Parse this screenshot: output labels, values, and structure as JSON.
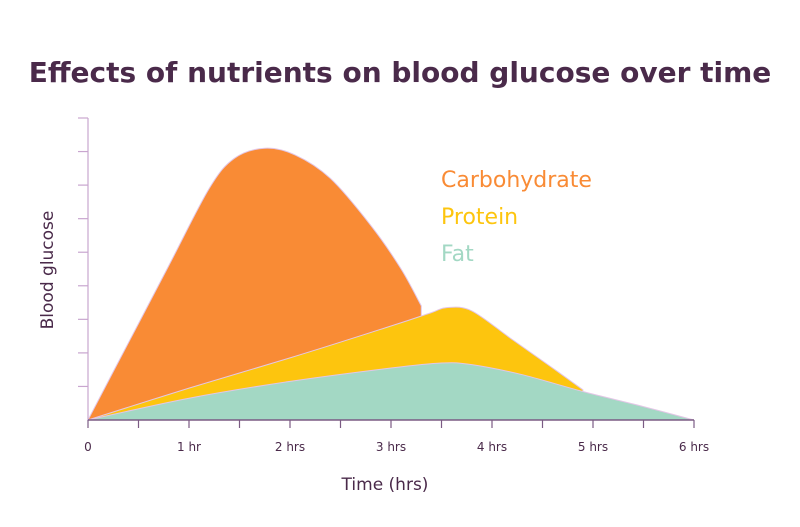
{
  "chart_data": {
    "type": "area",
    "title": "Effects of nutrients on blood glucose over time",
    "xlabel": "Time (hrs)",
    "ylabel": "Blood glucose",
    "xlim": [
      0,
      6
    ],
    "ylim": [
      0,
      9
    ],
    "x_tick_labels": [
      "0",
      "1 hr",
      "2 hrs",
      "3 hrs",
      "4 hrs",
      "5 hrs",
      "6 hrs"
    ],
    "y_tick_count": 9,
    "grid": false,
    "legend": "top-right",
    "series": [
      {
        "name": "Carbohydrate",
        "color": "#f98b35",
        "points": [
          [
            0,
            0
          ],
          [
            0.4,
            2.3
          ],
          [
            0.8,
            4.6
          ],
          [
            1.2,
            6.9
          ],
          [
            1.45,
            7.8
          ],
          [
            1.75,
            8.1
          ],
          [
            2.05,
            7.9
          ],
          [
            2.4,
            7.2
          ],
          [
            2.8,
            5.8
          ],
          [
            3.1,
            4.5
          ],
          [
            3.3,
            3.4
          ]
        ]
      },
      {
        "name": "Protein",
        "color": "#fdc50e",
        "points": [
          [
            0,
            0
          ],
          [
            1,
            0.95
          ],
          [
            2,
            1.85
          ],
          [
            3,
            2.8
          ],
          [
            3.4,
            3.2
          ],
          [
            3.55,
            3.35
          ],
          [
            3.8,
            3.25
          ],
          [
            4.2,
            2.4
          ],
          [
            4.6,
            1.55
          ],
          [
            4.9,
            0.9
          ]
        ]
      },
      {
        "name": "Fat",
        "color": "#a3d8c4",
        "points": [
          [
            0,
            0
          ],
          [
            1,
            0.65
          ],
          [
            2,
            1.15
          ],
          [
            3,
            1.55
          ],
          [
            3.5,
            1.7
          ],
          [
            3.8,
            1.65
          ],
          [
            4.3,
            1.35
          ],
          [
            4.9,
            0.85
          ],
          [
            5.5,
            0.4
          ],
          [
            6,
            0
          ]
        ]
      }
    ]
  }
}
